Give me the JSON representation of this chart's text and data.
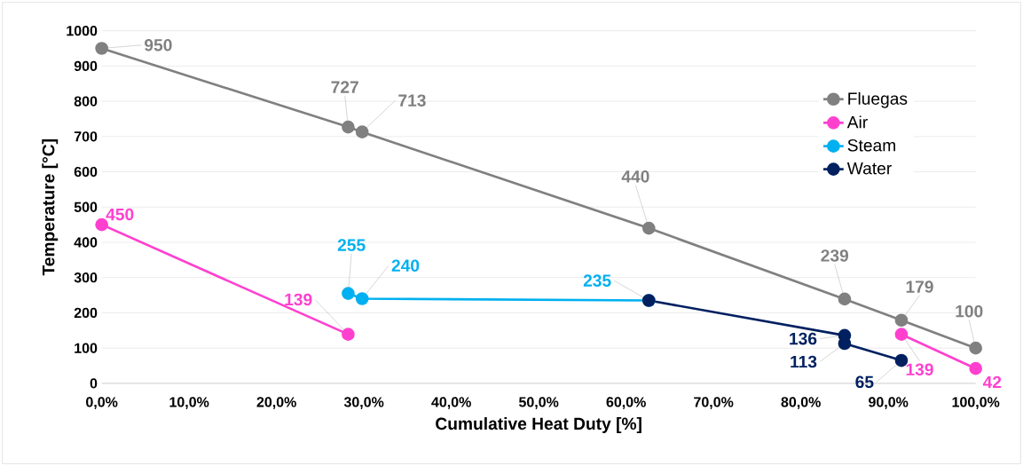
{
  "chart_data": {
    "type": "line",
    "xlabel": "Cumulative Heat Duty [%]",
    "ylabel": "Temperature [°C]",
    "xlim": [
      0,
      100
    ],
    "ylim": [
      0,
      1000
    ],
    "xticks": [
      {
        "value": 0,
        "label": "0,0%"
      },
      {
        "value": 10,
        "label": "10,0%"
      },
      {
        "value": 20,
        "label": "20,0%"
      },
      {
        "value": 30,
        "label": "30,0%"
      },
      {
        "value": 40,
        "label": "40,0%"
      },
      {
        "value": 50,
        "label": "50,0%"
      },
      {
        "value": 60,
        "label": "60,0%"
      },
      {
        "value": 70,
        "label": "70,0%"
      },
      {
        "value": 80,
        "label": "80,0%"
      },
      {
        "value": 90,
        "label": "90,0%"
      },
      {
        "value": 100,
        "label": "100,0%"
      }
    ],
    "yticks": [
      0,
      100,
      200,
      300,
      400,
      500,
      600,
      700,
      800,
      900,
      1000
    ],
    "grid": "y",
    "legend": "top right",
    "marker": "circle",
    "line_style": "solid",
    "series": [
      {
        "name": "Fluegas",
        "color": "#808080",
        "x": [
          0,
          28.2,
          29.8,
          62.6,
          85,
          91.5,
          100
        ],
        "values": [
          950,
          727,
          713,
          440,
          239,
          179,
          100
        ],
        "value_labels": [
          "950",
          "727",
          "713",
          "440",
          "239",
          "179",
          "100"
        ]
      },
      {
        "name": "Air",
        "color": "#ff40cf",
        "x": [
          0,
          28.2,
          null,
          91.5,
          100
        ],
        "values": [
          450,
          139,
          null,
          139,
          42
        ],
        "value_labels": [
          "450",
          "139",
          null,
          "139",
          "42"
        ]
      },
      {
        "name": "Steam",
        "color": "#00b0f0",
        "x": [
          28.2,
          29.8,
          62.6
        ],
        "values": [
          255,
          240,
          235
        ],
        "value_labels": [
          "255",
          "240",
          "235"
        ]
      },
      {
        "name": "Water",
        "color": "#002060",
        "x": [
          62.6,
          85,
          85,
          91.5
        ],
        "values": [
          235,
          136,
          113,
          65
        ],
        "value_labels": [
          null,
          "136",
          "113",
          "65"
        ]
      }
    ]
  }
}
